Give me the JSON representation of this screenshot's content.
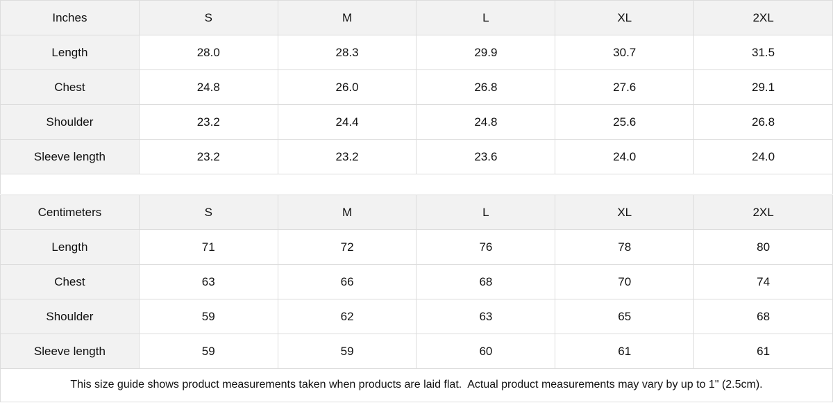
{
  "tables": [
    {
      "unit_label": "Inches",
      "sizes": [
        "S",
        "M",
        "L",
        "XL",
        "2XL"
      ],
      "rows": [
        {
          "label": "Length",
          "values": [
            "28.0",
            "28.3",
            "29.9",
            "30.7",
            "31.5"
          ]
        },
        {
          "label": "Chest",
          "values": [
            "24.8",
            "26.0",
            "26.8",
            "27.6",
            "29.1"
          ]
        },
        {
          "label": "Shoulder",
          "values": [
            "23.2",
            "24.4",
            "24.8",
            "25.6",
            "26.8"
          ]
        },
        {
          "label": "Sleeve length",
          "values": [
            "23.2",
            "23.2",
            "23.6",
            "24.0",
            "24.0"
          ]
        }
      ]
    },
    {
      "unit_label": "Centimeters",
      "sizes": [
        "S",
        "M",
        "L",
        "XL",
        "2XL"
      ],
      "rows": [
        {
          "label": "Length",
          "values": [
            "71",
            "72",
            "76",
            "78",
            "80"
          ]
        },
        {
          "label": "Chest",
          "values": [
            "63",
            "66",
            "68",
            "70",
            "74"
          ]
        },
        {
          "label": "Shoulder",
          "values": [
            "59",
            "62",
            "63",
            "65",
            "68"
          ]
        },
        {
          "label": "Sleeve length",
          "values": [
            "59",
            "59",
            "60",
            "61",
            "61"
          ]
        }
      ]
    }
  ],
  "footer_note": "This size guide shows product measurements taken when products are laid flat.  Actual product measurements may vary by up to 1\" (2.5cm).",
  "colors": {
    "header_bg": "#f2f2f2",
    "border": "#dcdcdc"
  }
}
